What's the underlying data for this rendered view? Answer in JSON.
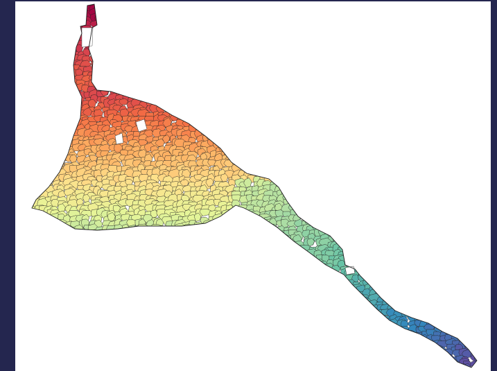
{
  "map": {
    "type": "choropleth-catchment",
    "color_scale": "spectral",
    "colors": [
      "#5e4fa2",
      "#3288bd",
      "#66c2a5",
      "#abdda4",
      "#e6f598",
      "#fee08b",
      "#fdae61",
      "#f46d43",
      "#d53e4f",
      "#9e0142"
    ],
    "background": "#ffffff",
    "frame_color": "#24264f"
  }
}
